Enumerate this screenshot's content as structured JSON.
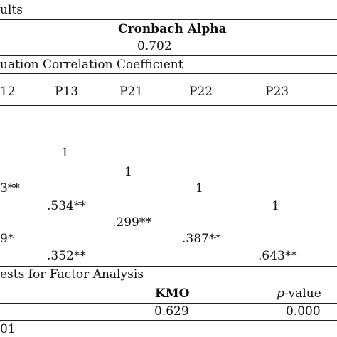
{
  "reliability": {
    "caption": "ults",
    "header": "Cronbach Alpha",
    "value": "0.702"
  },
  "correlation": {
    "caption": "uation Correlation Coefficient",
    "columns": [
      "12",
      "P13",
      "P21",
      "P22",
      "P23"
    ],
    "cells": {
      "r1_diag": "1",
      "r2_diag": "1",
      "r3_c1": "3**",
      "r3_diag": "1",
      "r4_c2": ".534**",
      "r4_diag": "1",
      "r5_c3": ".299**",
      "r6_c1": "9*",
      "r6_c4": ".387**",
      "r7_c2": ".352**",
      "r7_c5": ".643**"
    }
  },
  "factor_tests": {
    "caption": "ests for Factor Analysis",
    "kmo_header": "KMO",
    "pvalue_header": "p-value",
    "kmo_value": "0.629",
    "pvalue_value": "0.000"
  },
  "footnote": "01"
}
